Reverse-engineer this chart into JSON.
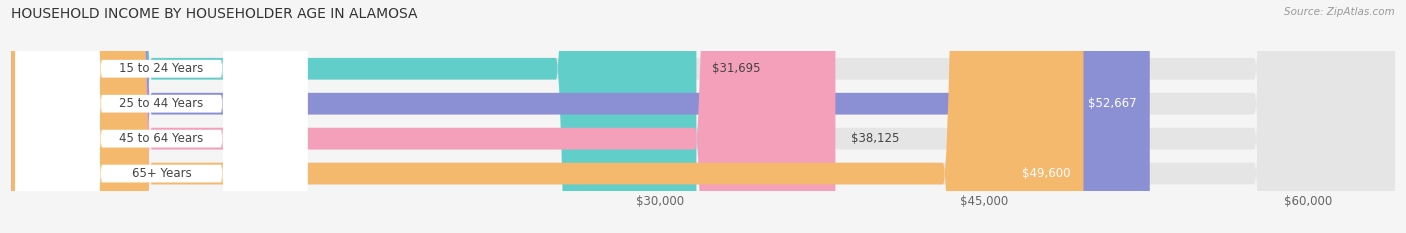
{
  "title": "HOUSEHOLD INCOME BY HOUSEHOLDER AGE IN ALAMOSA",
  "source": "Source: ZipAtlas.com",
  "categories": [
    "15 to 24 Years",
    "25 to 44 Years",
    "45 to 64 Years",
    "65+ Years"
  ],
  "values": [
    31695,
    52667,
    38125,
    49600
  ],
  "bar_colors": [
    "#62ceca",
    "#8b8fd4",
    "#f4a0ba",
    "#f5b96e"
  ],
  "value_label_inside": [
    false,
    true,
    false,
    true
  ],
  "x_ticks": [
    30000,
    45000,
    60000
  ],
  "x_tick_labels": [
    "$30,000",
    "$45,000",
    "$60,000"
  ],
  "xlim": [
    0,
    64000
  ],
  "bar_height": 0.62,
  "background_color": "#f5f5f5",
  "bar_bg_color": "#e5e5e5",
  "value_labels": [
    "$31,695",
    "$52,667",
    "$38,125",
    "$49,600"
  ],
  "label_badge_color": "#ffffff",
  "grid_color": "#cccccc",
  "text_color": "#444444",
  "title_fontsize": 10,
  "tick_fontsize": 8.5,
  "bar_label_fontsize": 8.5,
  "value_fontsize": 8.5
}
